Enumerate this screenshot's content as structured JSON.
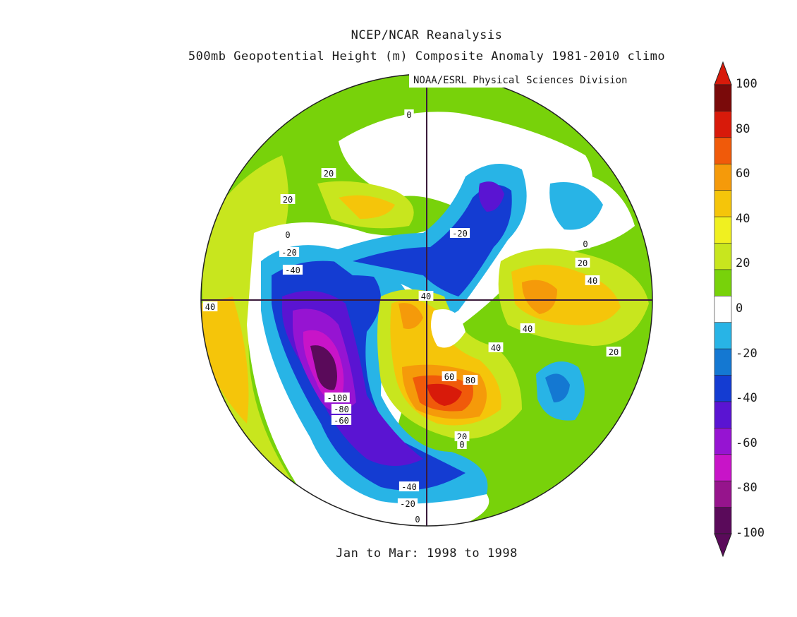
{
  "title": "NCEP/NCAR Reanalysis",
  "subtitle": "500mb Geopotential Height (m) Composite Anomaly 1981-2010 climo",
  "credit": "NOAA/ESRL Physical Sciences Division",
  "period": "Jan to Mar: 1998 to 1998",
  "colorbar": {
    "ticks": [
      "100",
      "80",
      "60",
      "40",
      "20",
      "0",
      "-20",
      "-40",
      "-60",
      "-80",
      "-100"
    ],
    "colors": [
      "#7a0a0a",
      "#d81a0a",
      "#f05a0a",
      "#f59a0a",
      "#f5c50a",
      "#f0f020",
      "#c8e61e",
      "#78d20a",
      "#ffffff",
      "#28b4e6",
      "#1478d2",
      "#143cd2",
      "#5a14d2",
      "#9614d2",
      "#c814c8",
      "#96148c",
      "#5a0a5a"
    ]
  },
  "contour_labels": [
    "0",
    "20",
    "20",
    "0",
    "-20",
    "-40",
    "40",
    "-20",
    "40",
    "0",
    "20",
    "40",
    "40",
    "40",
    "20",
    "60",
    "80",
    "-100",
    "-80",
    "-60",
    "20",
    "0",
    "-40",
    "-20",
    "0"
  ],
  "icons": [
    "north-pole-crosshair-icon",
    "colorbar-up-arrow-icon",
    "colorbar-down-arrow-icon"
  ]
}
